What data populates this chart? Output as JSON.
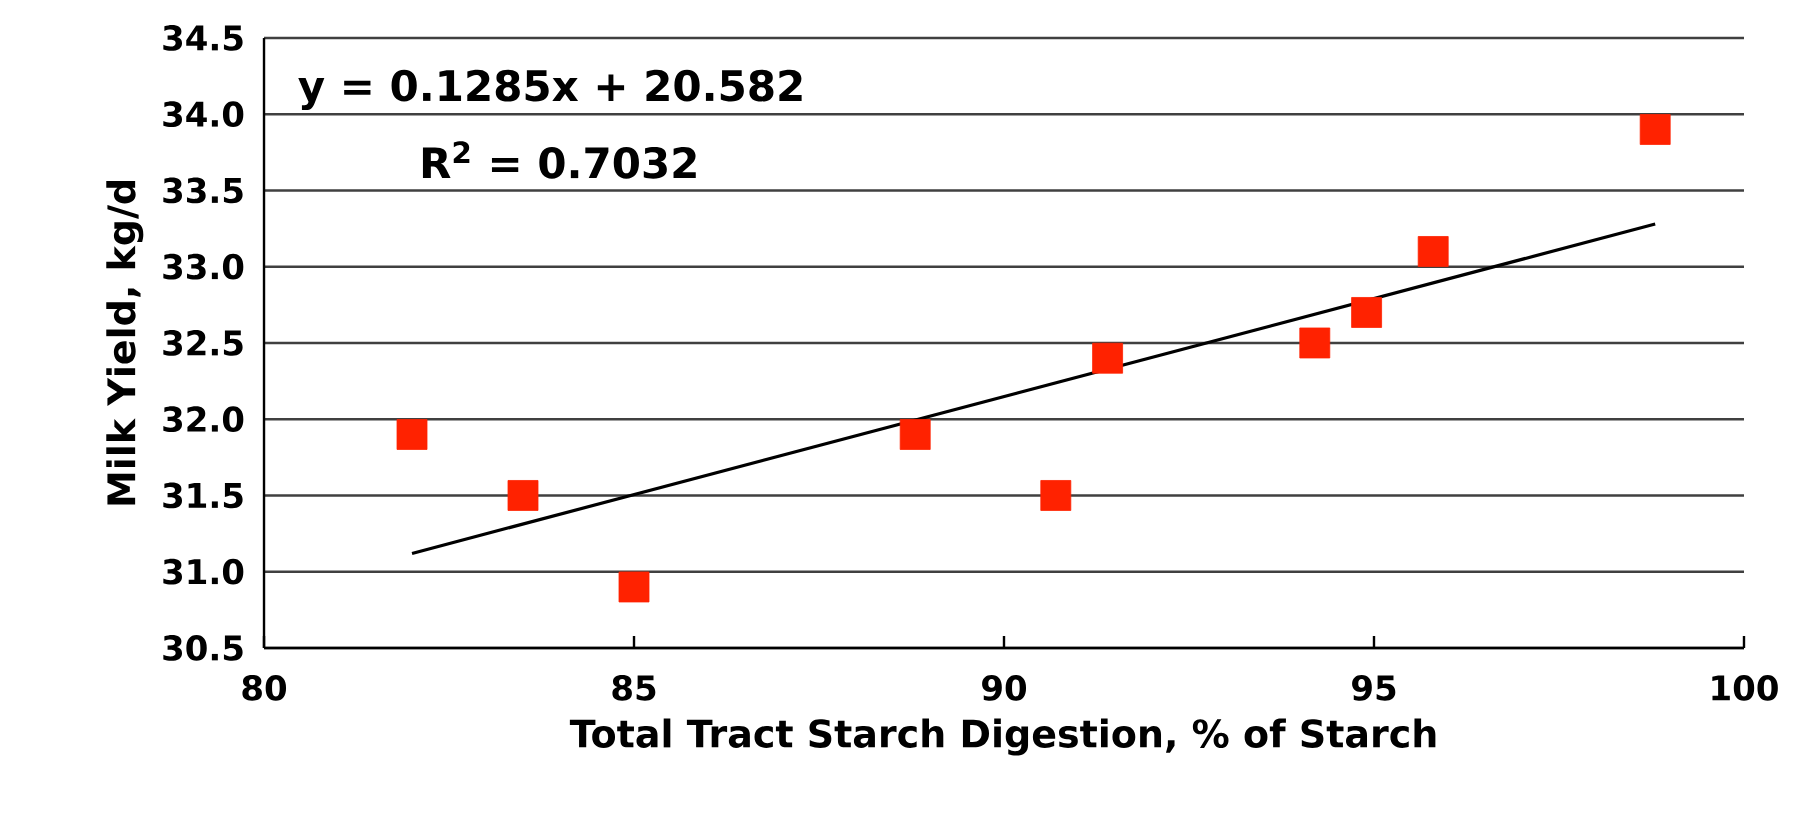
{
  "chart_data": {
    "type": "scatter",
    "xlabel": "Total Tract Starch Digestion, % of Starch",
    "ylabel": "Milk Yield, kg/d",
    "annotations": [
      "y = 0.1285x + 20.582",
      "R$^{2}$ = 0.7032"
    ],
    "xlim": [
      80,
      100
    ],
    "xticks": [
      80,
      85,
      90,
      95,
      100
    ],
    "ylim": [
      30.5,
      34.5
    ],
    "yticks": [
      30.5,
      {
        "value": 31,
        "label": "31.0"
      },
      31.5,
      {
        "value": 32,
        "label": "32.0"
      },
      32.5,
      {
        "value": 33,
        "label": "33.0"
      },
      33.5,
      {
        "value": 34,
        "label": "34.0"
      },
      34.5
    ],
    "grid": "y",
    "series": [
      {
        "type": "scatter",
        "marker": "square",
        "color": "#ff2200",
        "x": [
          82,
          83.5,
          85,
          88.8,
          90.7,
          91.4,
          94.2,
          94.9,
          95.8,
          98.8
        ],
        "values": [
          31.9,
          31.5,
          30.9,
          31.9,
          31.5,
          32.4,
          32.5,
          32.7,
          33.1,
          33.9
        ]
      },
      {
        "type": "line",
        "marker": "none",
        "color": "#000000",
        "line_style": "solid",
        "x": [
          82,
          98.8
        ],
        "values": [
          31.12,
          33.28
        ]
      }
    ]
  }
}
